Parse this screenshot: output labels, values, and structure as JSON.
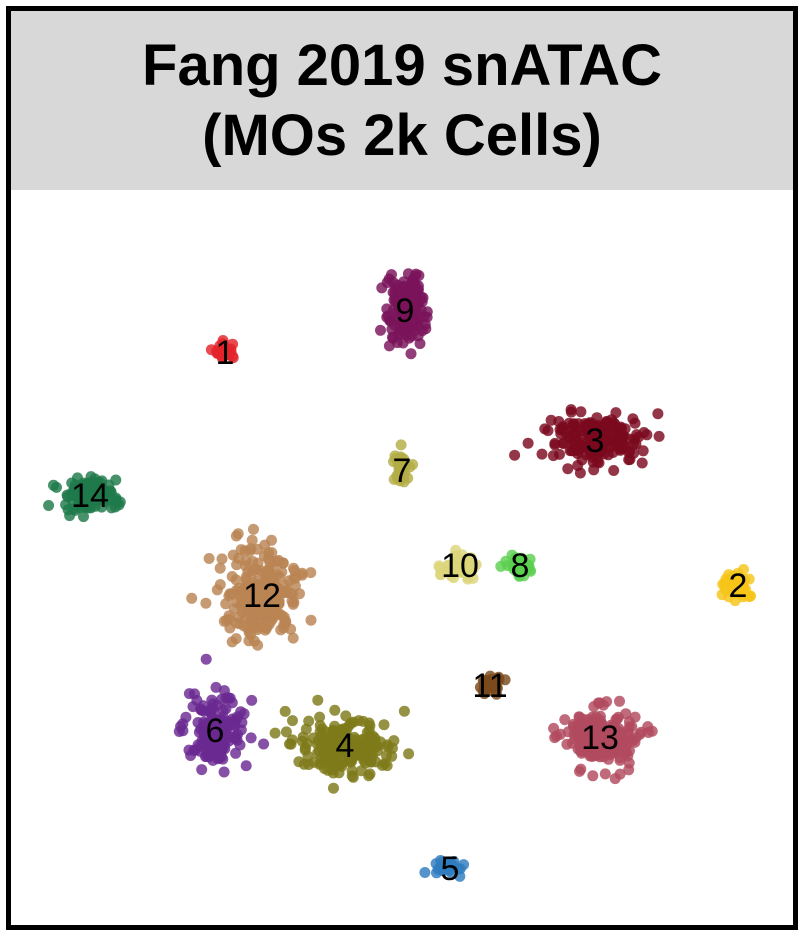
{
  "title": {
    "line1": "Fang 2019 snATAC",
    "line2": "(MOs 2k Cells)"
  },
  "chart_data": {
    "type": "scatter",
    "title": "Fang 2019 snATAC (MOs 2k Cells)",
    "xlabel": "",
    "ylabel": "",
    "grid": false,
    "legend": "none",
    "clusters": [
      {
        "label": "1",
        "color": "#e3242b",
        "center": [
          225,
          352
        ],
        "spread": [
          12,
          8
        ],
        "n": 22
      },
      {
        "label": "2",
        "color": "#f5c518",
        "center": [
          738,
          585
        ],
        "spread": [
          14,
          14
        ],
        "n": 40
      },
      {
        "label": "3",
        "color": "#7b0a1f",
        "center": [
          595,
          440
        ],
        "spread": [
          42,
          24
        ],
        "n": 190
      },
      {
        "label": "4",
        "color": "#7e7a1a",
        "center": [
          345,
          745
        ],
        "spread": [
          48,
          24
        ],
        "n": 200
      },
      {
        "label": "5",
        "color": "#2f7dbf",
        "center": [
          450,
          868
        ],
        "spread": [
          16,
          8
        ],
        "n": 24
      },
      {
        "label": "6",
        "color": "#6a2a91",
        "center": [
          215,
          730
        ],
        "spread": [
          28,
          32
        ],
        "n": 150
      },
      {
        "label": "7",
        "color": "#b3ad45",
        "center": [
          402,
          470
        ],
        "spread": [
          9,
          16
        ],
        "n": 35
      },
      {
        "label": "8",
        "color": "#5bd04f",
        "center": [
          520,
          565
        ],
        "spread": [
          12,
          11
        ],
        "n": 38
      },
      {
        "label": "9",
        "color": "#7a145a",
        "center": [
          405,
          310
        ],
        "spread": [
          17,
          34
        ],
        "n": 130
      },
      {
        "label": "10",
        "color": "#dcd57a",
        "center": [
          460,
          565
        ],
        "spread": [
          17,
          12
        ],
        "n": 55
      },
      {
        "label": "11",
        "color": "#7a4a1c",
        "center": [
          490,
          685
        ],
        "spread": [
          12,
          10
        ],
        "n": 32
      },
      {
        "label": "12",
        "color": "#b98453",
        "center": [
          262,
          595
        ],
        "spread": [
          34,
          38
        ],
        "n": 240
      },
      {
        "label": "13",
        "color": "#b14a5e",
        "center": [
          600,
          737
        ],
        "spread": [
          32,
          26
        ],
        "n": 210
      },
      {
        "label": "14",
        "color": "#1f7a4a",
        "center": [
          90,
          495
        ],
        "spread": [
          25,
          15
        ],
        "n": 100
      }
    ]
  }
}
